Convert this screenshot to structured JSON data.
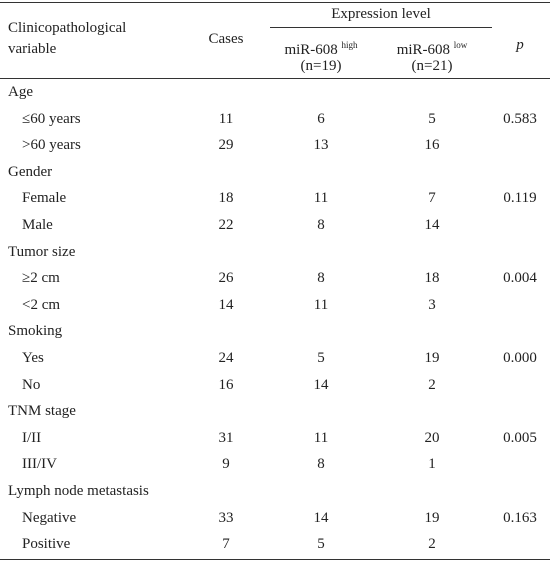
{
  "table": {
    "header": {
      "variable": "Clinicopathological variable",
      "cases": "Cases",
      "expression": "Expression level",
      "high": {
        "name": "miR-608",
        "sup": "high",
        "n": "(n=19)"
      },
      "low": {
        "name": "miR-608",
        "sup": "low",
        "n": "(n=21)"
      },
      "p": "p"
    },
    "groups": [
      {
        "name": "Age",
        "rows": [
          [
            "≤60 years",
            "11",
            "6",
            "5",
            "0.583"
          ],
          [
            ">60 years",
            "29",
            "13",
            "16",
            ""
          ]
        ]
      },
      {
        "name": "Gender",
        "rows": [
          [
            "Female",
            "18",
            "11",
            "7",
            "0.119"
          ],
          [
            "Male",
            "22",
            "8",
            "14",
            ""
          ]
        ]
      },
      {
        "name": "Tumor size",
        "rows": [
          [
            "≥2 cm",
            "26",
            "8",
            "18",
            "0.004"
          ],
          [
            "<2 cm",
            "14",
            "11",
            "3",
            ""
          ]
        ]
      },
      {
        "name": "Smoking",
        "rows": [
          [
            "Yes",
            "24",
            "5",
            "19",
            "0.000"
          ],
          [
            "No",
            "16",
            "14",
            "2",
            ""
          ]
        ]
      },
      {
        "name": "TNM stage",
        "rows": [
          [
            "I/II",
            "31",
            "11",
            "20",
            "0.005"
          ],
          [
            "III/IV",
            "9",
            "8",
            "1",
            ""
          ]
        ]
      },
      {
        "name": "Lymph node metastasis",
        "rows": [
          [
            "Negative",
            "33",
            "14",
            "19",
            "0.163"
          ],
          [
            "Positive",
            "7",
            "5",
            "2",
            ""
          ]
        ]
      }
    ]
  }
}
